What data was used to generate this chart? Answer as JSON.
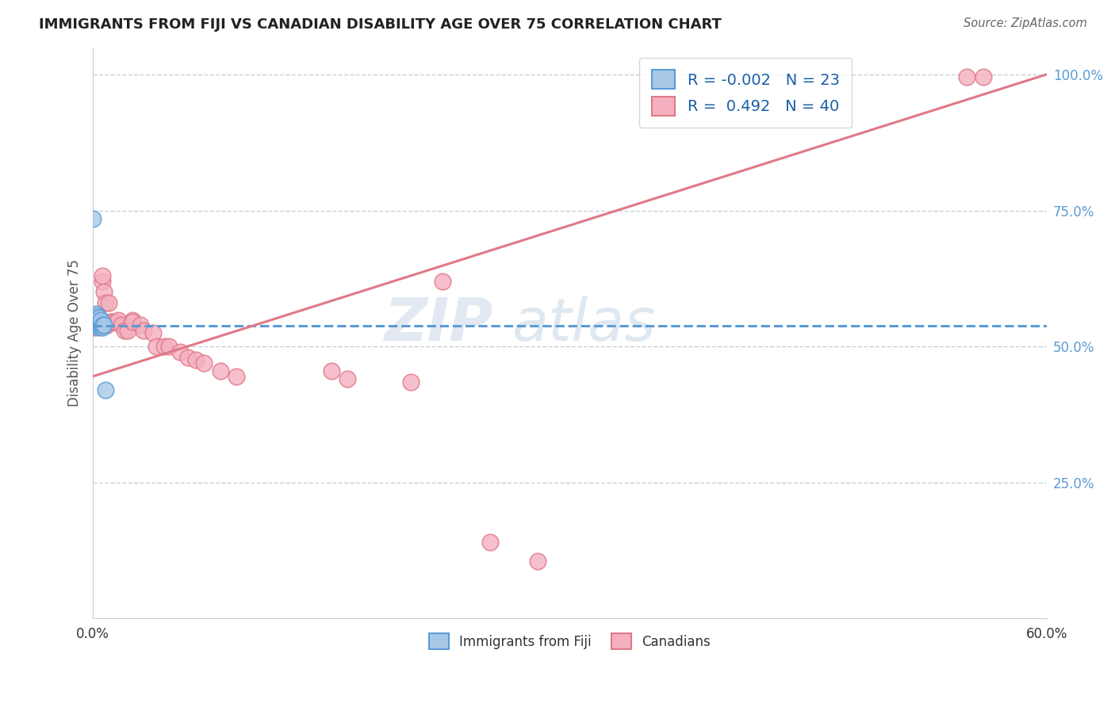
{
  "title": "IMMIGRANTS FROM FIJI VS CANADIAN DISABILITY AGE OVER 75 CORRELATION CHART",
  "source": "Source: ZipAtlas.com",
  "ylabel": "Disability Age Over 75",
  "watermark_line1": "ZIP",
  "watermark_line2": "atlas",
  "xlim": [
    0.0,
    0.6
  ],
  "ylim": [
    0.0,
    1.05
  ],
  "yticks": [
    0.25,
    0.5,
    0.75,
    1.0
  ],
  "ytick_labels": [
    "25.0%",
    "50.0%",
    "75.0%",
    "100.0%"
  ],
  "fiji_R": -0.002,
  "fiji_N": 23,
  "canadian_R": 0.492,
  "canadian_N": 40,
  "fiji_color": "#a8c8e8",
  "fiji_edge": "#5b9bd5",
  "canadian_color": "#f4b0be",
  "canadian_edge": "#e07888",
  "fiji_line_color": "#5b9bd5",
  "canadian_line_color": "#e07888",
  "grid_color": "#c8d0dc",
  "fiji_line_x0": 0.0,
  "fiji_line_y0": 0.538,
  "fiji_line_x1": 0.6,
  "fiji_line_y1": 0.538,
  "canadian_line_x0": 0.0,
  "canadian_line_y0": 0.445,
  "canadian_line_x1": 0.6,
  "canadian_line_y1": 1.0,
  "fiji_x": [
    0.0,
    0.001,
    0.001,
    0.002,
    0.002,
    0.002,
    0.003,
    0.003,
    0.003,
    0.003,
    0.004,
    0.004,
    0.004,
    0.004,
    0.004,
    0.005,
    0.005,
    0.005,
    0.005,
    0.006,
    0.006,
    0.007,
    0.008
  ],
  "fiji_y": [
    0.735,
    0.538,
    0.555,
    0.538,
    0.55,
    0.56,
    0.538,
    0.54,
    0.548,
    0.555,
    0.535,
    0.54,
    0.545,
    0.548,
    0.552,
    0.538,
    0.542,
    0.545,
    0.548,
    0.535,
    0.54,
    0.54,
    0.42
  ],
  "canadian_x": [
    0.001,
    0.002,
    0.003,
    0.004,
    0.005,
    0.006,
    0.006,
    0.007,
    0.008,
    0.009,
    0.01,
    0.011,
    0.012,
    0.014,
    0.016,
    0.018,
    0.02,
    0.022,
    0.025,
    0.025,
    0.03,
    0.032,
    0.038,
    0.04,
    0.045,
    0.048,
    0.055,
    0.06,
    0.065,
    0.07,
    0.08,
    0.09,
    0.15,
    0.16,
    0.2,
    0.22,
    0.25,
    0.28,
    0.55,
    0.56
  ],
  "canadian_y": [
    0.535,
    0.54,
    0.54,
    0.545,
    0.545,
    0.62,
    0.63,
    0.6,
    0.58,
    0.54,
    0.58,
    0.545,
    0.545,
    0.545,
    0.548,
    0.54,
    0.53,
    0.53,
    0.548,
    0.545,
    0.54,
    0.53,
    0.525,
    0.5,
    0.5,
    0.5,
    0.49,
    0.48,
    0.475,
    0.47,
    0.455,
    0.445,
    0.455,
    0.44,
    0.435,
    0.62,
    0.14,
    0.105,
    0.995,
    0.995
  ]
}
